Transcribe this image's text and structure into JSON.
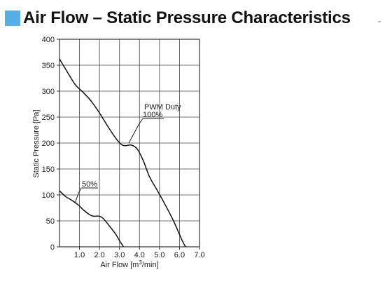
{
  "heading": {
    "title": "Air Flow – Static Pressure Characteristics",
    "accent_color": "#5aaee6"
  },
  "chart_data": {
    "type": "line",
    "xlabel_main": "Air Flow [m",
    "xlabel_sup": "3",
    "xlabel_tail": "/min]",
    "ylabel": "Static Pressure [Pa]",
    "xlim": [
      0,
      7
    ],
    "ylim": [
      0,
      400
    ],
    "x_ticks": [
      1,
      2,
      3,
      4,
      5,
      6,
      7
    ],
    "x_tick_labels": [
      "1.0",
      "2.0",
      "3.0",
      "4.0",
      "5.0",
      "6.0",
      "7.0"
    ],
    "y_ticks": [
      0,
      50,
      100,
      150,
      200,
      250,
      300,
      350,
      400
    ],
    "y_tick_labels": [
      "0",
      "50",
      "100",
      "150",
      "200",
      "250",
      "300",
      "350",
      "400"
    ],
    "grid": true,
    "annotation_prefix": "PWM Duty",
    "series": [
      {
        "name": "100%",
        "points": [
          [
            0,
            362
          ],
          [
            0.5,
            330
          ],
          [
            0.8,
            312
          ],
          [
            1.2,
            297
          ],
          [
            1.6,
            280
          ],
          [
            2.0,
            258
          ],
          [
            2.4,
            233
          ],
          [
            2.8,
            210
          ],
          [
            3.1,
            197
          ],
          [
            3.3,
            195
          ],
          [
            3.6,
            196
          ],
          [
            3.9,
            188
          ],
          [
            4.2,
            165
          ],
          [
            4.5,
            135
          ],
          [
            4.9,
            108
          ],
          [
            5.3,
            80
          ],
          [
            5.7,
            50
          ],
          [
            6.1,
            15
          ],
          [
            6.3,
            0
          ]
        ]
      },
      {
        "name": "50%",
        "points": [
          [
            0,
            108
          ],
          [
            0.3,
            97
          ],
          [
            0.6,
            90
          ],
          [
            0.9,
            82
          ],
          [
            1.2,
            71
          ],
          [
            1.5,
            62
          ],
          [
            1.7,
            59
          ],
          [
            2.0,
            59
          ],
          [
            2.2,
            54
          ],
          [
            2.5,
            40
          ],
          [
            2.8,
            25
          ],
          [
            3.0,
            12
          ],
          [
            3.2,
            0
          ]
        ]
      }
    ]
  }
}
